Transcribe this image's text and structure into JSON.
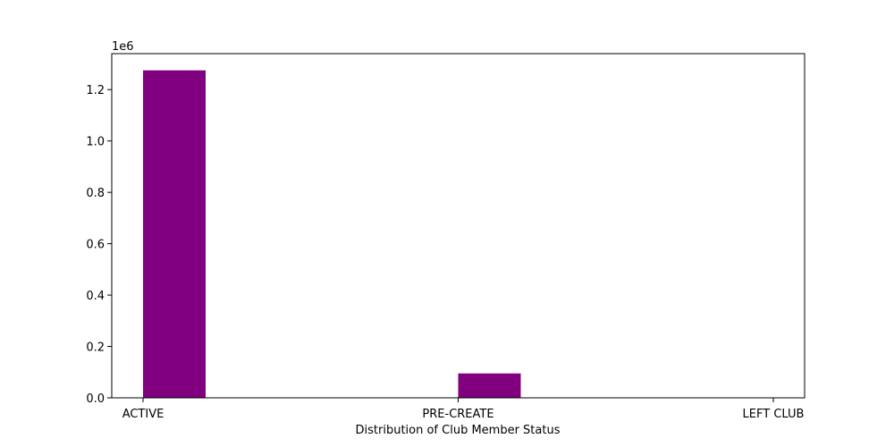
{
  "chart_data": {
    "type": "bar",
    "title": "",
    "xlabel": "Distribution of Club Member Status",
    "ylabel": "",
    "y_offset_label": "1e6",
    "categories": [
      "ACTIVE",
      "PRE-CREATE",
      "LEFT CLUB"
    ],
    "values": [
      1275000,
      95000,
      0
    ],
    "ylim": [
      0,
      1340000
    ],
    "yticks": [
      0,
      200000,
      400000,
      600000,
      800000,
      1000000,
      1200000
    ],
    "ytick_labels": [
      "0.0",
      "0.2",
      "0.4",
      "0.6",
      "0.8",
      "1.0",
      "1.2"
    ],
    "grid": false,
    "legend": "none",
    "colors": {
      "bar": "#800080",
      "axis": "#000000",
      "background": "#ffffff"
    }
  }
}
